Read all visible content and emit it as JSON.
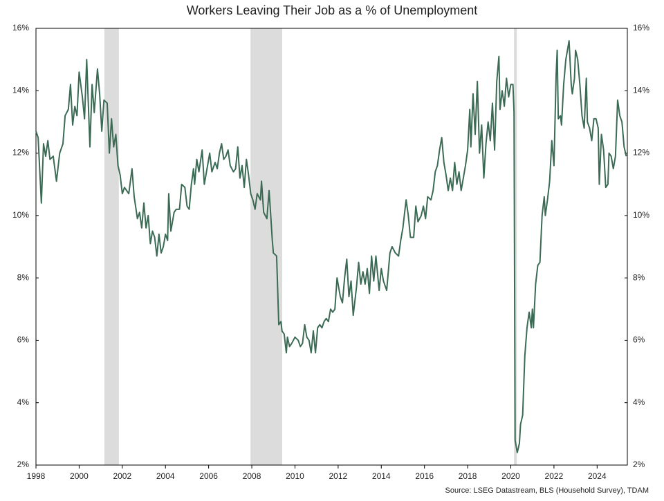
{
  "chart_data": {
    "type": "line",
    "title": "Workers Leaving Their Job as a % of Unemployment",
    "source": "Source: LSEG Datastream, BLS (Household Survey), TDAM",
    "color": "#3c6b55",
    "shade_color": "#dcdcdc",
    "shaded_periods": [
      [
        2001.17,
        2001.84
      ],
      [
        2007.94,
        2009.41
      ],
      [
        2020.15,
        2020.28
      ]
    ],
    "xlim": [
      1998,
      2025.4
    ],
    "xticks": [
      1998,
      2000,
      2002,
      2004,
      2006,
      2008,
      2010,
      2012,
      2014,
      2016,
      2018,
      2020,
      2022,
      2024
    ],
    "ylim": [
      2,
      16
    ],
    "yticks": [
      {
        "value": 2,
        "label": "2%"
      },
      {
        "value": 4,
        "label": "4%"
      },
      {
        "value": 6,
        "label": "6%"
      },
      {
        "value": 8,
        "label": "8%"
      },
      {
        "value": 10,
        "label": "10%"
      },
      {
        "value": 12,
        "label": "12%"
      },
      {
        "value": 14,
        "label": "14%"
      },
      {
        "value": 16,
        "label": "16%"
      }
    ],
    "y2lim": [
      2,
      16
    ],
    "y2ticks": [
      {
        "value": 2,
        "label": "2%"
      },
      {
        "value": 4,
        "label": "4%"
      },
      {
        "value": 6,
        "label": "6%"
      },
      {
        "value": 8,
        "label": "8%"
      },
      {
        "value": 10,
        "label": "10%"
      },
      {
        "value": 12,
        "label": "12%"
      },
      {
        "value": 14,
        "label": "14%"
      },
      {
        "value": 16,
        "label": "16%"
      }
    ],
    "x": [
      1998.0,
      1998.1,
      1998.25,
      1998.35,
      1998.45,
      1998.55,
      1998.65,
      1998.8,
      1998.95,
      1999.1,
      1999.25,
      1999.35,
      1999.5,
      1999.6,
      1999.7,
      1999.8,
      1999.9,
      2000.0,
      2000.15,
      2000.25,
      2000.35,
      2000.5,
      2000.6,
      2000.7,
      2000.85,
      2000.95,
      2001.05,
      2001.15,
      2001.3,
      2001.4,
      2001.5,
      2001.6,
      2001.7,
      2001.8,
      2001.9,
      2002.0,
      2002.1,
      2002.3,
      2002.45,
      2002.55,
      2002.7,
      2002.8,
      2002.9,
      2003.0,
      2003.1,
      2003.2,
      2003.3,
      2003.4,
      2003.5,
      2003.6,
      2003.7,
      2003.8,
      2003.9,
      2004.0,
      2004.1,
      2004.15,
      2004.25,
      2004.4,
      2004.5,
      2004.65,
      2004.75,
      2004.9,
      2005.0,
      2005.1,
      2005.2,
      2005.3,
      2005.35,
      2005.45,
      2005.55,
      2005.7,
      2005.8,
      2005.9,
      2006.05,
      2006.15,
      2006.3,
      2006.4,
      2006.5,
      2006.6,
      2006.7,
      2006.8,
      2006.9,
      2007.0,
      2007.15,
      2007.25,
      2007.35,
      2007.45,
      2007.55,
      2007.65,
      2007.75,
      2007.85,
      2007.95,
      2008.05,
      2008.15,
      2008.25,
      2008.4,
      2008.45,
      2008.55,
      2008.7,
      2008.8,
      2008.85,
      2008.95,
      2009.0,
      2009.15,
      2009.25,
      2009.35,
      2009.4,
      2009.5,
      2009.6,
      2009.65,
      2009.75,
      2009.85,
      2010.0,
      2010.15,
      2010.25,
      2010.35,
      2010.45,
      2010.55,
      2010.65,
      2010.75,
      2010.85,
      2010.95,
      2011.05,
      2011.15,
      2011.25,
      2011.35,
      2011.45,
      2011.55,
      2011.65,
      2011.75,
      2011.85,
      2011.95,
      2012.1,
      2012.2,
      2012.3,
      2012.4,
      2012.5,
      2012.6,
      2012.7,
      2012.85,
      2012.95,
      2013.05,
      2013.15,
      2013.25,
      2013.35,
      2013.45,
      2013.55,
      2013.65,
      2013.75,
      2013.9,
      2014.0,
      2014.1,
      2014.25,
      2014.4,
      2014.5,
      2014.65,
      2014.8,
      2014.9,
      2015.0,
      2015.15,
      2015.25,
      2015.35,
      2015.5,
      2015.6,
      2015.7,
      2015.85,
      2015.95,
      2016.05,
      2016.15,
      2016.3,
      2016.4,
      2016.5,
      2016.6,
      2016.7,
      2016.8,
      2016.9,
      2017.0,
      2017.1,
      2017.2,
      2017.3,
      2017.4,
      2017.5,
      2017.6,
      2017.7,
      2017.8,
      2017.9,
      2018.0,
      2018.1,
      2018.15,
      2018.25,
      2018.35,
      2018.45,
      2018.55,
      2018.65,
      2018.75,
      2018.85,
      2018.95,
      2019.05,
      2019.15,
      2019.25,
      2019.35,
      2019.45,
      2019.5,
      2019.6,
      2019.7,
      2019.8,
      2019.9,
      2020.0,
      2020.1,
      2020.15,
      2020.2,
      2020.3,
      2020.4,
      2020.45,
      2020.55,
      2020.65,
      2020.75,
      2020.85,
      2020.95,
      2021.0,
      2021.05,
      2021.15,
      2021.25,
      2021.35,
      2021.45,
      2021.55,
      2021.6,
      2021.7,
      2021.8,
      2021.9,
      2022.0,
      2022.1,
      2022.15,
      2022.2,
      2022.3,
      2022.35,
      2022.45,
      2022.55,
      2022.7,
      2022.8,
      2022.85,
      2022.95,
      2023.0,
      2023.1,
      2023.2,
      2023.3,
      2023.4,
      2023.5,
      2023.55,
      2023.65,
      2023.75,
      2023.85,
      2023.95,
      2024.05,
      2024.1,
      2024.2,
      2024.3,
      2024.4,
      2024.5,
      2024.55,
      2024.65,
      2024.75,
      2024.85,
      2024.95,
      2025.05,
      2025.15,
      2025.25,
      2025.35
    ],
    "values": [
      12.7,
      12.5,
      10.4,
      12.3,
      11.9,
      12.4,
      11.8,
      11.9,
      11.1,
      12.0,
      12.3,
      13.2,
      13.4,
      14.2,
      12.9,
      13.5,
      13.2,
      14.6,
      13.8,
      13.1,
      15.0,
      12.2,
      14.2,
      13.3,
      14.7,
      13.9,
      12.7,
      13.7,
      13.6,
      12.0,
      13.1,
      12.2,
      12.6,
      11.6,
      11.3,
      10.7,
      10.9,
      10.7,
      11.5,
      10.6,
      9.9,
      10.1,
      9.6,
      10.4,
      9.6,
      10.0,
      9.1,
      9.5,
      9.3,
      8.7,
      9.4,
      8.8,
      9.0,
      9.4,
      9.2,
      10.7,
      9.5,
      10.1,
      10.2,
      10.2,
      11.0,
      10.9,
      10.3,
      10.2,
      11.0,
      11.5,
      11.0,
      11.8,
      11.4,
      12.1,
      11.0,
      11.4,
      12.0,
      11.4,
      11.7,
      11.5,
      12.0,
      12.3,
      11.8,
      11.9,
      12.1,
      11.6,
      11.4,
      11.5,
      12.2,
      11.2,
      11.6,
      10.9,
      11.8,
      11.3,
      10.7,
      10.5,
      10.2,
      10.7,
      10.5,
      11.1,
      10.1,
      9.9,
      10.8,
      10.3,
      9.2,
      8.8,
      8.7,
      6.5,
      6.6,
      6.3,
      6.2,
      5.6,
      6.1,
      5.8,
      5.9,
      6.1,
      6.0,
      5.8,
      5.9,
      6.5,
      6.1,
      6.0,
      5.6,
      6.3,
      5.6,
      6.4,
      6.5,
      6.4,
      6.6,
      6.7,
      6.6,
      7.0,
      6.9,
      7.0,
      8.0,
      7.4,
      7.2,
      8.0,
      8.6,
      7.4,
      7.9,
      6.8,
      7.7,
      8.5,
      7.8,
      8.2,
      7.8,
      8.3,
      7.5,
      8.7,
      7.9,
      8.7,
      7.6,
      8.3,
      7.9,
      7.6,
      8.8,
      9.0,
      8.8,
      8.7,
      9.2,
      9.6,
      10.5,
      10.0,
      9.3,
      9.3,
      10.3,
      9.8,
      10.0,
      10.3,
      9.9,
      10.6,
      10.5,
      10.8,
      11.4,
      11.6,
      12.1,
      12.5,
      11.7,
      11.3,
      10.8,
      11.2,
      10.8,
      11.7,
      11.0,
      11.4,
      10.8,
      11.2,
      11.6,
      12.1,
      13.4,
      12.2,
      13.9,
      12.6,
      14.3,
      12.0,
      12.9,
      11.2,
      12.3,
      13.0,
      12.4,
      13.6,
      12.1,
      14.3,
      15.1,
      13.4,
      14.0,
      13.5,
      14.4,
      13.8,
      14.2,
      14.2,
      13.3,
      2.8,
      2.4,
      2.7,
      3.3,
      3.6,
      5.5,
      6.4,
      6.9,
      6.4,
      7.0,
      6.4,
      7.8,
      8.4,
      8.5,
      10.0,
      10.6,
      10.0,
      10.5,
      11.1,
      12.4,
      11.6,
      14.5,
      15.3,
      13.1,
      13.2,
      12.9,
      14.2,
      15.0,
      15.6,
      14.2,
      13.9,
      14.4,
      15.3,
      15.0,
      14.2,
      13.2,
      12.8,
      14.4,
      13.0,
      12.8,
      12.4,
      13.1,
      13.1,
      12.8,
      11.0,
      12.6,
      12.1,
      10.9,
      11.0,
      12.0,
      11.9,
      11.5,
      11.9,
      13.7,
      13.2,
      13.0,
      12.2,
      11.9
    ]
  }
}
